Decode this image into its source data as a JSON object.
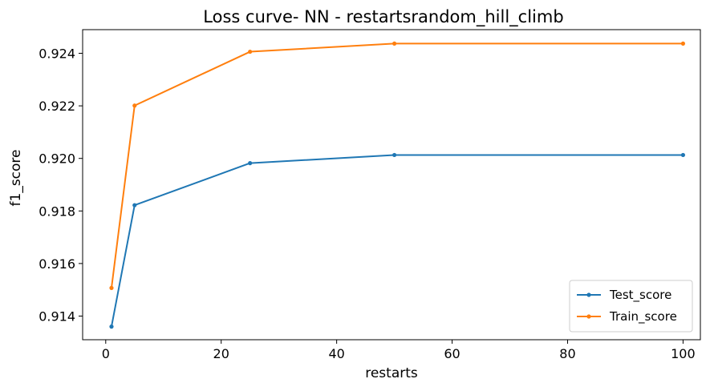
{
  "chart_data": {
    "type": "line",
    "title": "Loss curve- NN - restartsrandom_hill_climb",
    "xlabel": "restarts",
    "ylabel": "f1_score",
    "x": [
      1,
      5,
      25,
      50,
      100
    ],
    "series": [
      {
        "name": "Test_score",
        "color": "#1f77b4",
        "marker": "circle",
        "values": [
          0.9136,
          0.91822,
          0.91982,
          0.92013,
          0.92013
        ]
      },
      {
        "name": "Train_score",
        "color": "#ff7f0e",
        "marker": "circle",
        "values": [
          0.91507,
          0.92201,
          0.92406,
          0.92437,
          0.92437
        ]
      }
    ],
    "xlim": [
      -4,
      103
    ],
    "ylim": [
      0.9131,
      0.9249
    ],
    "xticks": [
      0,
      20,
      40,
      60,
      80,
      100
    ],
    "xtick_labels": [
      "0",
      "20",
      "40",
      "60",
      "80",
      "100"
    ],
    "yticks": [
      0.914,
      0.916,
      0.918,
      0.92,
      0.922,
      0.924
    ],
    "ytick_labels": [
      "0.914",
      "0.916",
      "0.918",
      "0.920",
      "0.922",
      "0.924"
    ],
    "grid": false,
    "legend_position": "lower-right"
  }
}
